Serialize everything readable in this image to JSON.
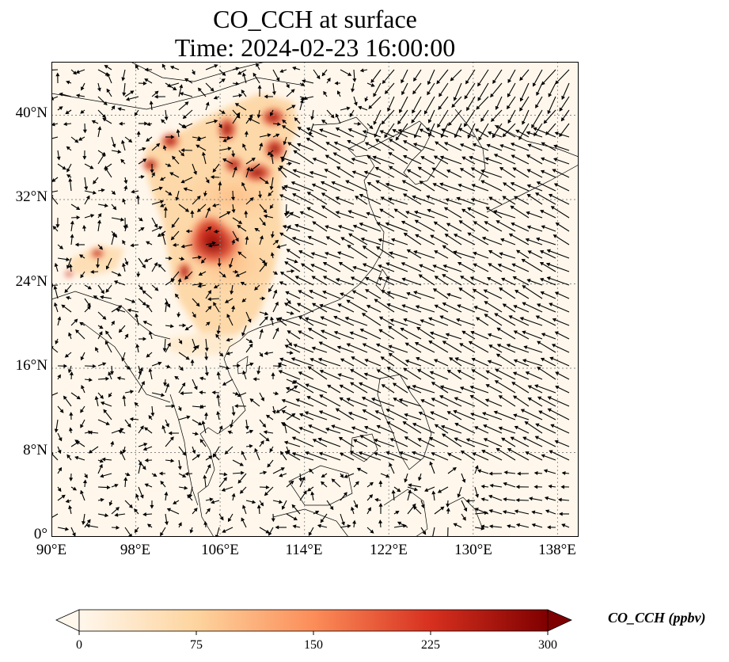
{
  "title": {
    "line1": "CO_CCH at surface",
    "line2": "Time: 2024-02-23 16:00:00"
  },
  "map": {
    "lon_range": [
      90,
      140
    ],
    "lat_range": [
      0,
      44
    ],
    "lon_ticks": [
      "90°E",
      "98°E",
      "106°E",
      "114°E",
      "122°E",
      "130°E",
      "138°E"
    ],
    "lat_ticks": [
      "0°",
      "8°N",
      "16°N",
      "24°N",
      "32°N",
      "40°N"
    ],
    "gridlines": "dotted",
    "overlay": "wind vectors",
    "colormap": "OrRd"
  },
  "colorbar": {
    "label": "CO_CCH (ppbv)",
    "ticks": [
      "0",
      "75",
      "150",
      "225",
      "300"
    ],
    "range": [
      0,
      300
    ],
    "extend": "both",
    "colors": [
      "#fff7ec",
      "#fdd49e",
      "#fc8d59",
      "#d7301f",
      "#7f0000"
    ]
  }
}
